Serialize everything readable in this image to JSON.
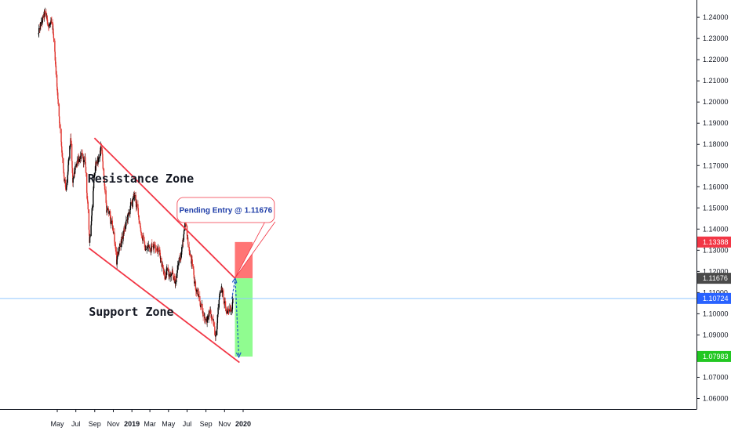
{
  "chart_data": {
    "type": "candlestick",
    "y_axis": {
      "range": [
        1.055,
        1.248
      ],
      "ticks": [
        "1.24000",
        "1.23000",
        "1.22000",
        "1.21000",
        "1.20000",
        "1.19000",
        "1.18000",
        "1.17000",
        "1.16000",
        "1.15000",
        "1.14000",
        "1.13000",
        "1.12000",
        "1.11000",
        "1.10000",
        "1.09000",
        "1.08000",
        "1.07000",
        "1.06000"
      ],
      "tick_values": [
        1.24,
        1.23,
        1.22,
        1.21,
        1.2,
        1.19,
        1.18,
        1.17,
        1.16,
        1.15,
        1.14,
        1.13,
        1.12,
        1.11,
        1.1,
        1.09,
        1.08,
        1.07,
        1.06
      ],
      "position": "right"
    },
    "x_axis": {
      "labels": [
        {
          "label": "May",
          "date": "2018-05-01"
        },
        {
          "label": "Jul",
          "date": "2018-07-01"
        },
        {
          "label": "Sep",
          "date": "2018-09-01"
        },
        {
          "label": "Nov",
          "date": "2018-11-01"
        },
        {
          "label": "2019",
          "date": "2019-01-01",
          "bold": true
        },
        {
          "label": "Mar",
          "date": "2019-03-01"
        },
        {
          "label": "May",
          "date": "2019-05-01"
        },
        {
          "label": "Jul",
          "date": "2019-07-01"
        },
        {
          "label": "Sep",
          "date": "2019-09-01"
        },
        {
          "label": "Nov",
          "date": "2019-11-01"
        },
        {
          "label": "2020",
          "date": "2020-01-01",
          "bold": true
        }
      ]
    },
    "price_path": [
      {
        "date": "2018-03-01",
        "price": 1.232
      },
      {
        "date": "2018-03-20",
        "price": 1.24
      },
      {
        "date": "2018-04-10",
        "price": 1.235
      },
      {
        "date": "2018-04-20",
        "price": 1.23
      },
      {
        "date": "2018-04-30",
        "price": 1.208
      },
      {
        "date": "2018-05-15",
        "price": 1.18
      },
      {
        "date": "2018-05-30",
        "price": 1.157
      },
      {
        "date": "2018-06-14",
        "price": 1.18
      },
      {
        "date": "2018-06-21",
        "price": 1.16
      },
      {
        "date": "2018-07-09",
        "price": 1.175
      },
      {
        "date": "2018-08-01",
        "price": 1.17
      },
      {
        "date": "2018-08-15",
        "price": 1.135
      },
      {
        "date": "2018-08-31",
        "price": 1.168
      },
      {
        "date": "2018-09-24",
        "price": 1.178
      },
      {
        "date": "2018-10-10",
        "price": 1.15
      },
      {
        "date": "2018-11-01",
        "price": 1.14
      },
      {
        "date": "2018-11-12",
        "price": 1.123
      },
      {
        "date": "2018-11-26",
        "price": 1.134
      },
      {
        "date": "2019-01-10",
        "price": 1.155
      },
      {
        "date": "2019-02-15",
        "price": 1.13
      },
      {
        "date": "2019-03-20",
        "price": 1.135
      },
      {
        "date": "2019-04-20",
        "price": 1.12
      },
      {
        "date": "2019-05-23",
        "price": 1.115
      },
      {
        "date": "2019-06-25",
        "price": 1.14
      },
      {
        "date": "2019-07-31",
        "price": 1.112
      },
      {
        "date": "2019-08-30",
        "price": 1.098
      },
      {
        "date": "2019-09-15",
        "price": 1.1
      },
      {
        "date": "2019-10-01",
        "price": 1.09
      },
      {
        "date": "2019-10-20",
        "price": 1.115
      },
      {
        "date": "2019-11-05",
        "price": 1.1
      },
      {
        "date": "2019-11-30",
        "price": 1.108
      }
    ],
    "trendlines": [
      {
        "name": "resistance",
        "color": "#f23645",
        "start": {
          "date": "2018-08-31",
          "price": 1.183
        },
        "end": {
          "date": "2019-12-05",
          "price": 1.1168
        }
      },
      {
        "name": "support",
        "color": "#f23645",
        "start": {
          "date": "2018-08-13",
          "price": 1.131
        },
        "end": {
          "date": "2019-12-20",
          "price": 1.077
        }
      }
    ],
    "zones": [
      {
        "name": "stop",
        "color": "#ff5252",
        "opacity": 0.8,
        "from_date": "2019-12-05",
        "to_date": "2020-02-01",
        "from_price": 1.11676,
        "to_price": 1.13388
      },
      {
        "name": "target",
        "color": "#7CFC7C",
        "opacity": 0.85,
        "from_date": "2019-12-05",
        "to_date": "2020-02-01",
        "from_price": 1.0798,
        "to_price": 1.11676
      }
    ],
    "horizontal_line": {
      "price": 1.10724,
      "color": "#90c8ff"
    },
    "projection_arrows": [
      {
        "from": {
          "date": "2019-11-25",
          "price": 1.107
        },
        "to": {
          "date": "2019-12-06",
          "price": 1.1168
        }
      },
      {
        "from": {
          "date": "2019-12-06",
          "price": 1.1168
        },
        "to": {
          "date": "2019-12-18",
          "price": 1.0795
        }
      }
    ],
    "price_badges": [
      {
        "label": "1.13388",
        "price": 1.13388,
        "color": "#f23645"
      },
      {
        "label": "1.11676",
        "price": 1.11676,
        "color": "#4a4a4a"
      },
      {
        "label": "1.10724",
        "price": 1.10724,
        "color": "#2962ff"
      },
      {
        "label": "1.07983",
        "price": 1.07983,
        "color": "#22c722"
      }
    ],
    "annotations": [
      {
        "text": "Resistance Zone",
        "date": "2019-01-30",
        "price": 1.162
      },
      {
        "text": "Support Zone",
        "date": "2018-12-30",
        "price": 1.099
      }
    ],
    "callout": {
      "text": "Pending Entry @ 1.11676",
      "date": "2019-11-05",
      "price": 1.149,
      "points_to": {
        "date": "2019-12-05",
        "price": 1.1168
      }
    },
    "colors": {
      "up": "#000000",
      "down": "#e0352f",
      "trendline": "#f23645",
      "arrow": "#1e5bc6"
    }
  }
}
